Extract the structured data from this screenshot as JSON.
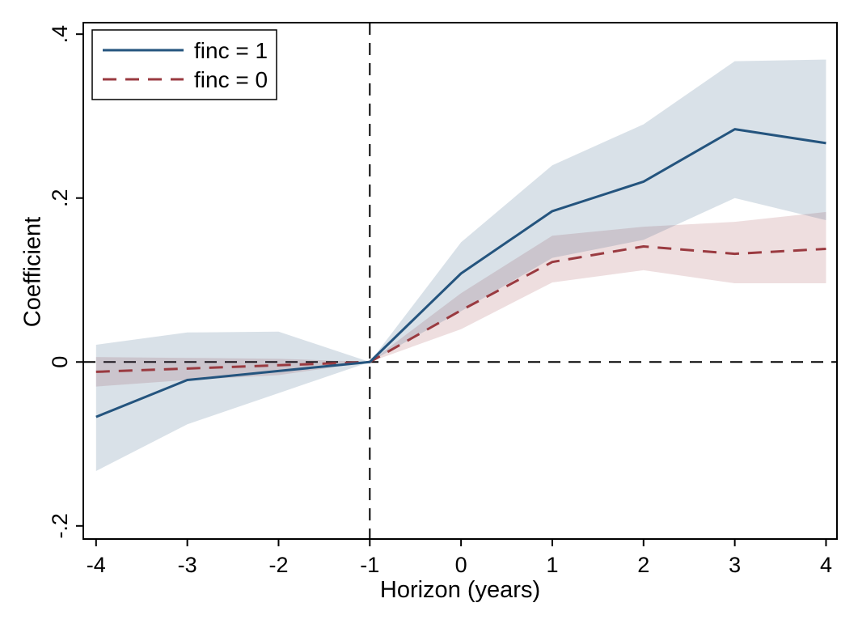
{
  "chart_data": {
    "type": "line",
    "title": "",
    "xlabel": "Horizon (years)",
    "ylabel": "Coefficient",
    "x": [
      -4,
      -3,
      -2,
      -1,
      0,
      1,
      2,
      3,
      4
    ],
    "series": [
      {
        "name": "finc = 1",
        "color": "#24547e",
        "line_style": "solid",
        "values": [
          -0.067,
          -0.022,
          -0.011,
          0,
          0.108,
          0.184,
          0.22,
          0.284,
          0.267
        ],
        "ci_upper": [
          0.021,
          0.036,
          0.037,
          0,
          0.146,
          0.24,
          0.29,
          0.367,
          0.369
        ],
        "ci_lower": [
          -0.133,
          -0.076,
          -0.038,
          0,
          0.062,
          0.127,
          0.149,
          0.2,
          0.173
        ],
        "band_color": "rgba(31, 78, 121, 0.17)"
      },
      {
        "name": "finc = 0",
        "color": "#9a3a40",
        "line_style": "dashed",
        "values": [
          -0.012,
          -0.008,
          -0.004,
          0,
          0.063,
          0.122,
          0.141,
          0.132,
          0.138
        ],
        "ci_upper": [
          0.006,
          0.005,
          0.004,
          0,
          0.084,
          0.154,
          0.165,
          0.171,
          0.183
        ],
        "ci_lower": [
          -0.03,
          -0.022,
          -0.016,
          0,
          0.04,
          0.097,
          0.112,
          0.096,
          0.096
        ],
        "band_color": "rgba(154, 58, 64, 0.17)"
      }
    ],
    "xticks": [
      -4,
      -3,
      -2,
      -1,
      0,
      1,
      2,
      3,
      4
    ],
    "xtick_labels": [
      "-4",
      "-3",
      "-2",
      "-1",
      "0",
      "1",
      "2",
      "3",
      "4"
    ],
    "yticks": [
      0.4,
      0.2,
      0,
      -0.2
    ],
    "ytick_labels": [
      ".4",
      ".2",
      "0",
      "-.2"
    ],
    "xlim": [
      -4.14,
      4.12
    ],
    "ylim": [
      -0.216,
      0.414
    ],
    "reference_lines": [
      {
        "axis": "x",
        "value": -1,
        "style": "dashed",
        "color": "#000000"
      },
      {
        "axis": "y",
        "value": 0,
        "style": "dashed",
        "color": "#000000"
      }
    ],
    "grid": false,
    "legend_position": "top-left",
    "axis_color": "#000000"
  }
}
